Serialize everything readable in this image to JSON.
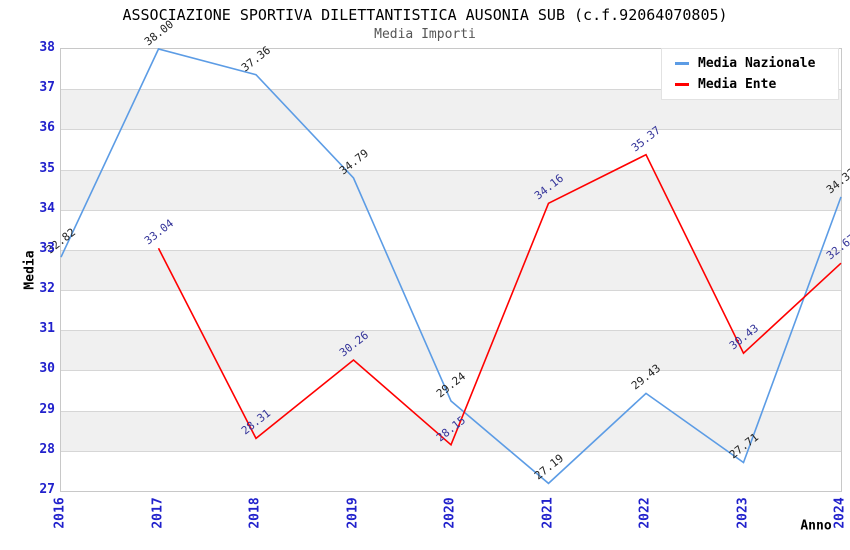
{
  "header": {
    "title": "ASSOCIAZIONE SPORTIVA DILETTANTISTICA AUSONIA SUB (c.f.92064070805)",
    "subtitle": "Media Importi"
  },
  "axes": {
    "y_label": "Media",
    "x_label": "Anno",
    "y_ticks": [
      38,
      37,
      36,
      35,
      34,
      33,
      32,
      31,
      30,
      29,
      28,
      27
    ],
    "x_ticks": [
      "2016",
      "2017",
      "2018",
      "2019",
      "2020",
      "2021",
      "2022",
      "2023",
      "2024"
    ]
  },
  "legend": {
    "position": "top-right",
    "items": [
      {
        "label": "Media Nazionale",
        "color": "#5c9ce5"
      },
      {
        "label": "Media Ente",
        "color": "#ff0000"
      }
    ]
  },
  "chart_data": {
    "type": "line",
    "title": "ASSOCIAZIONE SPORTIVA DILETTANTISTICA AUSONIA SUB (c.f.92064070805)",
    "subtitle": "Media Importi",
    "xlabel": "Anno",
    "ylabel": "Media",
    "x": [
      2016,
      2017,
      2018,
      2019,
      2020,
      2021,
      2022,
      2023,
      2024
    ],
    "ylim": [
      27,
      38
    ],
    "grid": "horizontal gridlines with alternating white/gray 1-unit bands",
    "legend_position": "top-right",
    "series": [
      {
        "name": "Media Nazionale",
        "color": "#5c9ce5",
        "label_color": "#222222",
        "values": [
          32.82,
          38.0,
          37.36,
          34.79,
          29.24,
          27.19,
          29.43,
          27.71,
          34.32
        ]
      },
      {
        "name": "Media Ente",
        "color": "#ff0000",
        "label_color": "#333399",
        "values": [
          null,
          33.04,
          28.31,
          30.26,
          28.15,
          34.16,
          35.37,
          30.43,
          32.67
        ]
      }
    ]
  },
  "colors": {
    "tick_blue": "#2121cc",
    "gridline": "#d6d6d6",
    "band_gray": "#f0f0f0",
    "plot_border": "#c8c8c8",
    "subtitle_gray": "#555555"
  }
}
